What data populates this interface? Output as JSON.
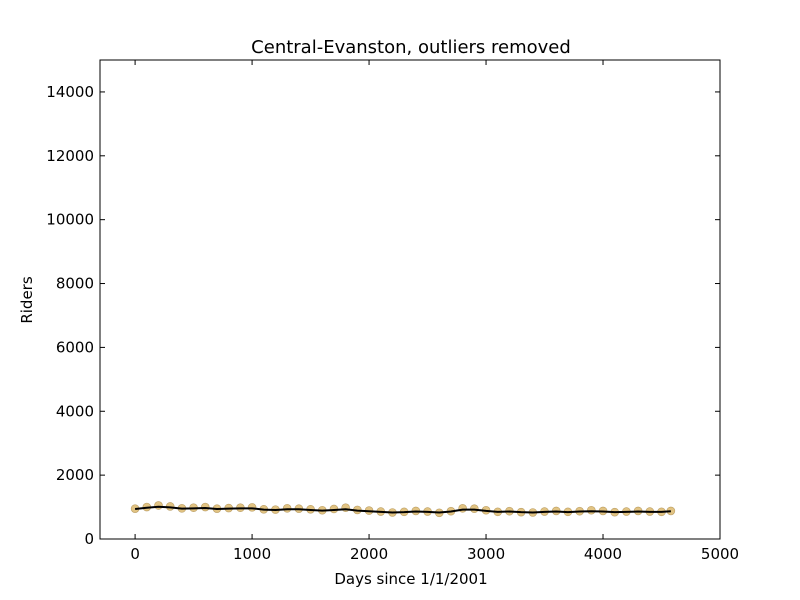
{
  "chart_data": {
    "type": "scatter",
    "title": "Central-Evanston, outliers removed",
    "xlabel": "Days since 1/1/2001",
    "ylabel": "Riders",
    "xlim": [
      -300,
      5000
    ],
    "ylim": [
      0,
      15000
    ],
    "xticks": [
      0,
      1000,
      2000,
      3000,
      4000,
      5000
    ],
    "yticks": [
      0,
      2000,
      4000,
      6000,
      8000,
      10000,
      12000,
      14000
    ],
    "grid": false,
    "legend": "none",
    "series": [
      {
        "style": "scatter",
        "color": "#c8921e",
        "x": [
          0,
          100,
          200,
          300,
          400,
          500,
          600,
          700,
          800,
          900,
          1000,
          1100,
          1200,
          1300,
          1400,
          1500,
          1600,
          1700,
          1800,
          1900,
          2000,
          2100,
          2200,
          2300,
          2400,
          2500,
          2600,
          2700,
          2800,
          2900,
          3000,
          3100,
          3200,
          3300,
          3400,
          3500,
          3600,
          3700,
          3800,
          3900,
          4000,
          4100,
          4200,
          4300,
          4400,
          4500,
          4580
        ],
        "y": [
          950,
          1000,
          1050,
          1020,
          960,
          980,
          1000,
          950,
          970,
          980,
          990,
          930,
          920,
          960,
          950,
          930,
          900,
          940,
          980,
          910,
          890,
          860,
          830,
          850,
          880,
          860,
          820,
          870,
          960,
          950,
          900,
          850,
          870,
          840,
          830,
          860,
          880,
          850,
          870,
          900,
          880,
          840,
          860,
          880,
          860,
          850,
          880
        ]
      },
      {
        "style": "line",
        "color": "#000000",
        "x": [
          0,
          100,
          200,
          300,
          400,
          500,
          600,
          700,
          800,
          900,
          1000,
          1100,
          1200,
          1300,
          1400,
          1500,
          1600,
          1700,
          1800,
          1900,
          2000,
          2100,
          2200,
          2300,
          2400,
          2500,
          2600,
          2700,
          2800,
          2900,
          3000,
          3100,
          3200,
          3300,
          3400,
          3500,
          3600,
          3700,
          3800,
          3900,
          4000,
          4100,
          4200,
          4300,
          4400,
          4500,
          4580
        ],
        "y": [
          940,
          980,
          1010,
          990,
          950,
          960,
          970,
          940,
          950,
          960,
          960,
          920,
          910,
          930,
          930,
          910,
          890,
          910,
          930,
          890,
          870,
          850,
          830,
          840,
          860,
          850,
          830,
          860,
          920,
          920,
          880,
          850,
          860,
          840,
          830,
          850,
          860,
          840,
          860,
          870,
          860,
          840,
          850,
          860,
          850,
          850,
          870
        ]
      }
    ]
  }
}
